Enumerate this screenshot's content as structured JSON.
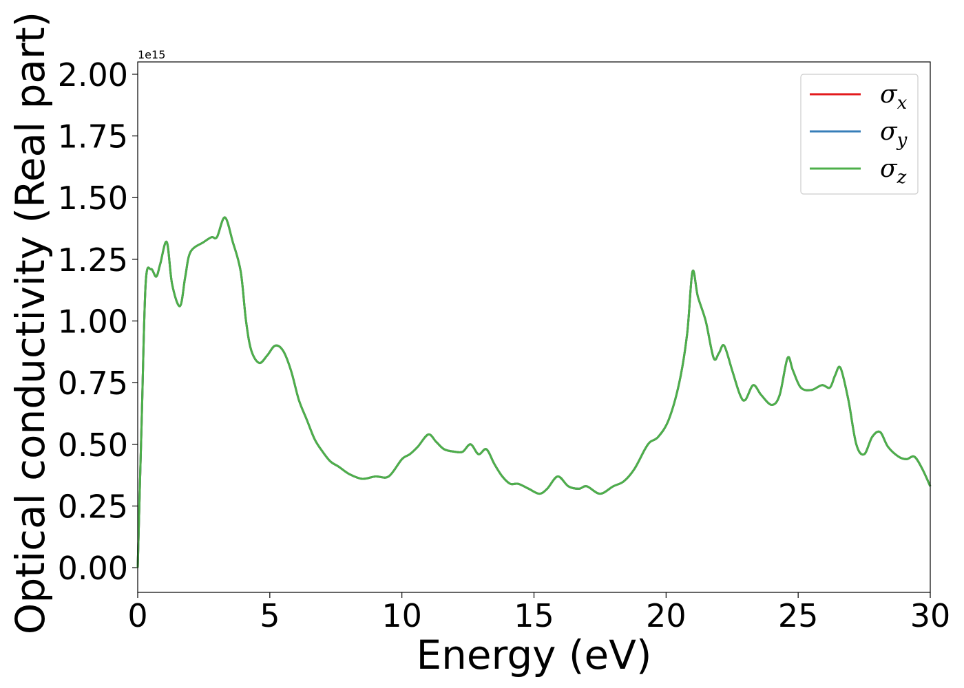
{
  "chart_data": {
    "type": "line",
    "title": "",
    "xlabel": "Energy (eV)",
    "ylabel": "Optical conductivity (Real part)",
    "y_offset_label": "1e15",
    "xlim": [
      0,
      30
    ],
    "ylim": [
      -0.1,
      2.05
    ],
    "xticks": [
      0,
      5,
      10,
      15,
      20,
      25,
      30
    ],
    "xtick_labels": [
      "0",
      "5",
      "10",
      "15",
      "20",
      "25",
      "30"
    ],
    "yticks": [
      0,
      0.25,
      0.5,
      0.75,
      1.0,
      1.25,
      1.5,
      1.75,
      2.0
    ],
    "ytick_labels": [
      "0.00",
      "0.25",
      "0.50",
      "0.75",
      "1.00",
      "1.25",
      "1.50",
      "1.75",
      "2.00"
    ],
    "grid": false,
    "legend_position": "top-right",
    "x": [
      0,
      0.15,
      0.3,
      0.5,
      0.7,
      0.85,
      1.1,
      1.3,
      1.6,
      1.8,
      2.0,
      2.5,
      2.8,
      3.0,
      3.3,
      3.6,
      3.9,
      4.1,
      4.3,
      4.6,
      4.9,
      5.2,
      5.5,
      5.8,
      6.1,
      6.4,
      6.7,
      7.0,
      7.3,
      7.6,
      8.0,
      8.5,
      9.0,
      9.5,
      10.0,
      10.3,
      10.6,
      11.0,
      11.3,
      11.6,
      12.0,
      12.3,
      12.6,
      12.9,
      13.2,
      13.5,
      13.8,
      14.1,
      14.4,
      14.8,
      15.2,
      15.5,
      15.9,
      16.3,
      16.7,
      17.0,
      17.5,
      18.0,
      18.4,
      18.8,
      19.2,
      19.4,
      19.7,
      20.1,
      20.5,
      20.8,
      21.0,
      21.2,
      21.5,
      21.8,
      22.0,
      22.2,
      22.5,
      22.8,
      23.0,
      23.3,
      23.6,
      24.0,
      24.3,
      24.6,
      24.8,
      25.1,
      25.5,
      25.9,
      26.2,
      26.4,
      26.6,
      26.9,
      27.2,
      27.5,
      27.8,
      28.1,
      28.4,
      28.8,
      29.1,
      29.4,
      29.7,
      30.0
    ],
    "series": [
      {
        "name": "σx",
        "color": "#e31a1c",
        "values": [
          0.0,
          0.6,
          1.15,
          1.21,
          1.18,
          1.23,
          1.32,
          1.15,
          1.06,
          1.18,
          1.28,
          1.32,
          1.34,
          1.34,
          1.42,
          1.32,
          1.2,
          1.0,
          0.88,
          0.83,
          0.86,
          0.9,
          0.88,
          0.8,
          0.68,
          0.6,
          0.52,
          0.47,
          0.43,
          0.41,
          0.38,
          0.36,
          0.37,
          0.37,
          0.44,
          0.46,
          0.49,
          0.54,
          0.51,
          0.48,
          0.47,
          0.47,
          0.5,
          0.46,
          0.48,
          0.42,
          0.37,
          0.34,
          0.34,
          0.32,
          0.3,
          0.32,
          0.37,
          0.33,
          0.32,
          0.33,
          0.3,
          0.33,
          0.35,
          0.4,
          0.48,
          0.51,
          0.53,
          0.6,
          0.75,
          0.95,
          1.2,
          1.1,
          1.0,
          0.85,
          0.87,
          0.9,
          0.8,
          0.7,
          0.68,
          0.74,
          0.7,
          0.66,
          0.7,
          0.85,
          0.8,
          0.73,
          0.72,
          0.74,
          0.73,
          0.78,
          0.81,
          0.68,
          0.5,
          0.46,
          0.53,
          0.55,
          0.49,
          0.45,
          0.44,
          0.45,
          0.4,
          0.33
        ]
      },
      {
        "name": "σy",
        "color": "#377eb8",
        "values": [
          0.0,
          0.6,
          1.15,
          1.21,
          1.18,
          1.23,
          1.32,
          1.15,
          1.06,
          1.18,
          1.28,
          1.32,
          1.34,
          1.34,
          1.42,
          1.32,
          1.2,
          1.0,
          0.88,
          0.83,
          0.86,
          0.9,
          0.88,
          0.8,
          0.68,
          0.6,
          0.52,
          0.47,
          0.43,
          0.41,
          0.38,
          0.36,
          0.37,
          0.37,
          0.44,
          0.46,
          0.49,
          0.54,
          0.51,
          0.48,
          0.47,
          0.47,
          0.5,
          0.46,
          0.48,
          0.42,
          0.37,
          0.34,
          0.34,
          0.32,
          0.3,
          0.32,
          0.37,
          0.33,
          0.32,
          0.33,
          0.3,
          0.33,
          0.35,
          0.4,
          0.48,
          0.51,
          0.53,
          0.6,
          0.75,
          0.95,
          1.2,
          1.1,
          1.0,
          0.85,
          0.87,
          0.9,
          0.8,
          0.7,
          0.68,
          0.74,
          0.7,
          0.66,
          0.7,
          0.85,
          0.8,
          0.73,
          0.72,
          0.74,
          0.73,
          0.78,
          0.81,
          0.68,
          0.5,
          0.46,
          0.53,
          0.55,
          0.49,
          0.45,
          0.44,
          0.45,
          0.4,
          0.33
        ]
      },
      {
        "name": "σz",
        "color": "#4daf4a",
        "values": [
          0.0,
          0.6,
          1.15,
          1.21,
          1.18,
          1.23,
          1.32,
          1.15,
          1.06,
          1.18,
          1.28,
          1.32,
          1.34,
          1.34,
          1.42,
          1.32,
          1.2,
          1.0,
          0.88,
          0.83,
          0.86,
          0.9,
          0.88,
          0.8,
          0.68,
          0.6,
          0.52,
          0.47,
          0.43,
          0.41,
          0.38,
          0.36,
          0.37,
          0.37,
          0.44,
          0.46,
          0.49,
          0.54,
          0.51,
          0.48,
          0.47,
          0.47,
          0.5,
          0.46,
          0.48,
          0.42,
          0.37,
          0.34,
          0.34,
          0.32,
          0.3,
          0.32,
          0.37,
          0.33,
          0.32,
          0.33,
          0.3,
          0.33,
          0.35,
          0.4,
          0.48,
          0.51,
          0.53,
          0.6,
          0.75,
          0.95,
          1.2,
          1.1,
          1.0,
          0.85,
          0.87,
          0.9,
          0.8,
          0.7,
          0.68,
          0.74,
          0.7,
          0.66,
          0.7,
          0.85,
          0.8,
          0.73,
          0.72,
          0.74,
          0.73,
          0.78,
          0.81,
          0.68,
          0.5,
          0.46,
          0.53,
          0.55,
          0.49,
          0.45,
          0.44,
          0.45,
          0.4,
          0.33
        ]
      }
    ],
    "legend": {
      "entries": [
        {
          "base": "σ",
          "sub": "x",
          "color": "#e31a1c"
        },
        {
          "base": "σ",
          "sub": "y",
          "color": "#377eb8"
        },
        {
          "base": "σ",
          "sub": "z",
          "color": "#4daf4a"
        }
      ]
    }
  }
}
